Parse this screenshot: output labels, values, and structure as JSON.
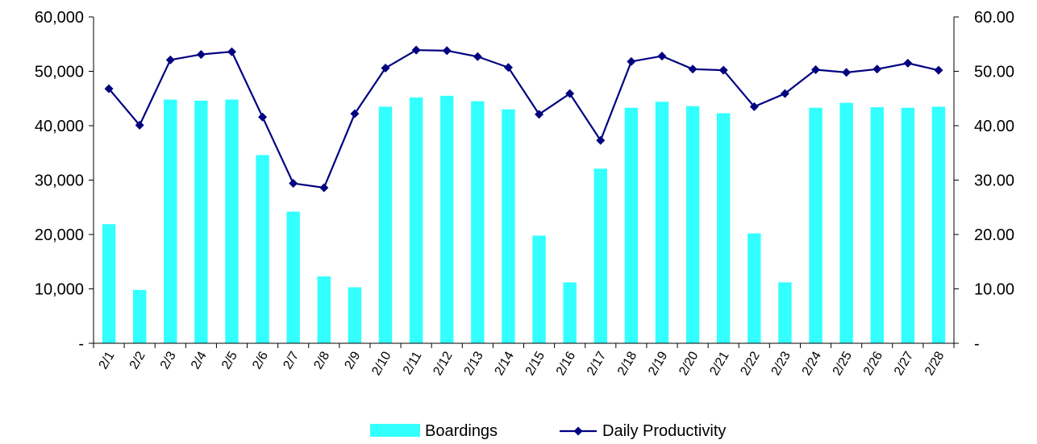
{
  "chart_data": {
    "type": "bar",
    "categories": [
      "2/1",
      "2/2",
      "2/3",
      "2/4",
      "2/5",
      "2/6",
      "2/7",
      "2/8",
      "2/9",
      "2/10",
      "2/11",
      "2/12",
      "2/13",
      "2/14",
      "2/15",
      "2/16",
      "2/17",
      "2/18",
      "2/19",
      "2/20",
      "2/21",
      "2/22",
      "2/23",
      "2/24",
      "2/25",
      "2/26",
      "2/27",
      "2/28"
    ],
    "series": [
      {
        "name": "Boardings",
        "type": "bar",
        "axis": "left",
        "color": "#33FFFF",
        "values": [
          21900,
          9800,
          44800,
          44600,
          44800,
          34600,
          24200,
          12300,
          10300,
          43500,
          45200,
          45500,
          44500,
          43000,
          19800,
          11200,
          32100,
          43300,
          44400,
          43600,
          42300,
          20200,
          11200,
          43300,
          44200,
          43400,
          43300,
          43500
        ]
      },
      {
        "name": "Daily Productivity",
        "type": "line",
        "axis": "right",
        "color": "#000080",
        "marker": "diamond",
        "values": [
          46.8,
          40.1,
          52.1,
          53.1,
          53.6,
          41.6,
          29.4,
          28.6,
          42.2,
          50.6,
          53.9,
          53.8,
          52.7,
          50.7,
          42.1,
          45.9,
          37.3,
          51.8,
          52.8,
          50.4,
          50.2,
          43.5,
          45.9,
          50.3,
          49.8,
          50.4,
          51.5,
          50.2
        ]
      }
    ],
    "y_left": {
      "lim": [
        0,
        60000
      ],
      "ticks": [
        0,
        10000,
        20000,
        30000,
        40000,
        50000,
        60000
      ],
      "tick_labels": [
        "-",
        "10,000",
        "20,000",
        "30,000",
        "40,000",
        "50,000",
        "60,000"
      ]
    },
    "y_right": {
      "lim": [
        0,
        60
      ],
      "ticks": [
        0,
        10,
        20,
        30,
        40,
        50,
        60
      ],
      "tick_labels": [
        "-",
        "10.00",
        "20.00",
        "30.00",
        "40.00",
        "50.00",
        "60.00"
      ]
    },
    "grid": false,
    "legend": {
      "position": "bottom",
      "entries": [
        "Boardings",
        "Daily Productivity"
      ]
    },
    "title": "",
    "xlabel": "",
    "ylabel": ""
  }
}
